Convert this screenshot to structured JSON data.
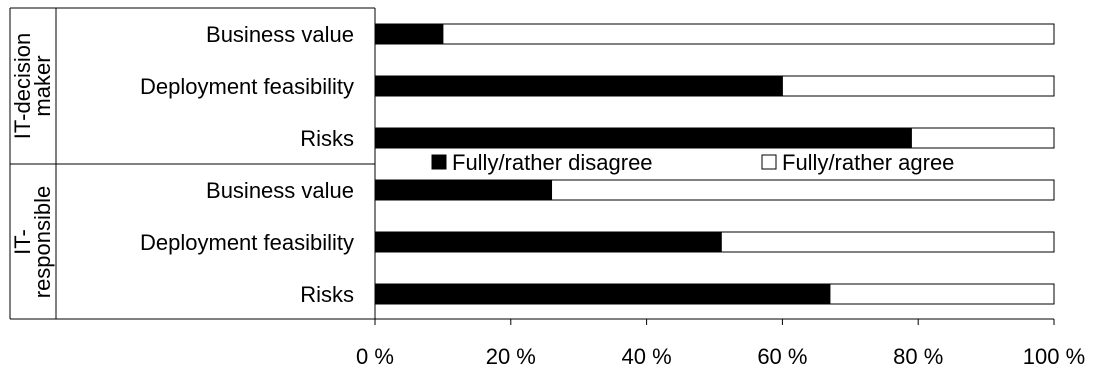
{
  "chart_data": {
    "type": "bar",
    "orientation": "horizontal",
    "stacked": true,
    "percent_stacked": true,
    "groups": [
      {
        "label": "IT-decision maker",
        "categories": [
          "Business value",
          "Deployment feasibility",
          "Risks"
        ]
      },
      {
        "label": "IT-responsible",
        "categories": [
          "Business value",
          "Deployment feasibility",
          "Risks"
        ]
      }
    ],
    "series": [
      {
        "name": "Fully/rather disagree",
        "values": [
          10,
          60,
          79,
          26,
          51,
          67
        ],
        "color": "#000000"
      },
      {
        "name": "Fully/rather agree",
        "values": [
          90,
          40,
          21,
          74,
          49,
          33
        ],
        "color": "#ffffff"
      }
    ],
    "xticks": [
      "0 %",
      "20 %",
      "40 %",
      "60 %",
      "80 %",
      "100 %"
    ],
    "xlim": [
      0,
      100
    ],
    "grid": false,
    "legend_position": "center"
  }
}
